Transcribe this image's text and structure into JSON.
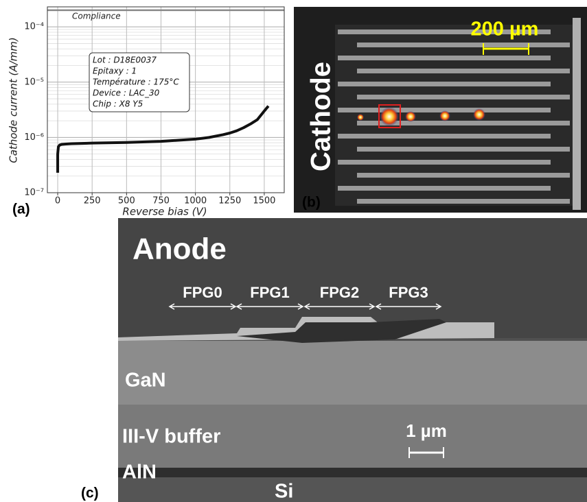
{
  "chart_data": {
    "type": "line",
    "log_y": true,
    "xlabel": "Reverse bias (V)",
    "ylabel": "Cathode current (A/mm)",
    "xlim": [
      -75,
      1645
    ],
    "ylim": [
      1e-07,
      0.00023
    ],
    "xticks": [
      0,
      250,
      500,
      750,
      1000,
      1250,
      1500
    ],
    "yticks": [
      {
        "value": 1e-07,
        "label": "10⁻⁷"
      },
      {
        "value": 1e-06,
        "label": "10⁻⁶"
      },
      {
        "value": 1e-05,
        "label": "10⁻⁵"
      },
      {
        "value": 0.0001,
        "label": "10⁻⁴"
      }
    ],
    "grid": true,
    "x": [
      0,
      0,
      5,
      15,
      30,
      60,
      100,
      250,
      500,
      750,
      1000,
      1100,
      1200,
      1250,
      1300,
      1350,
      1400,
      1450,
      1500,
      1530
    ],
    "series": [
      {
        "color": "#111111",
        "values": [
          2.3e-07,
          5e-07,
          6.8e-07,
          7.3e-07,
          7.5e-07,
          7.6e-07,
          7.7e-07,
          7.9e-07,
          8.1e-07,
          8.5e-07,
          9.3e-07,
          1e-06,
          1.12e-06,
          1.2e-06,
          1.32e-06,
          1.5e-06,
          1.75e-06,
          2.1e-06,
          3e-06,
          3.7e-06
        ]
      }
    ],
    "compliance": {
      "value": 0.0002,
      "label": "Compliance"
    },
    "info_box": [
      "Lot : D18E0037",
      "Epitaxy : 1",
      "Température : 175°C",
      "Device : LAC_30",
      "Chip : X8 Y5"
    ]
  },
  "panels": {
    "a": "(a)",
    "b": "(b)",
    "c": "(c)"
  },
  "image_b": {
    "side_label": "Cathode",
    "scale": "200 µm"
  },
  "image_c": {
    "anode": "Anode",
    "plates": [
      "FPG0",
      "FPG1",
      "FPG2",
      "FPG3"
    ],
    "layers": [
      "GaN",
      "III-V buffer",
      "AlN",
      "Si"
    ],
    "scale": "1 µm"
  }
}
